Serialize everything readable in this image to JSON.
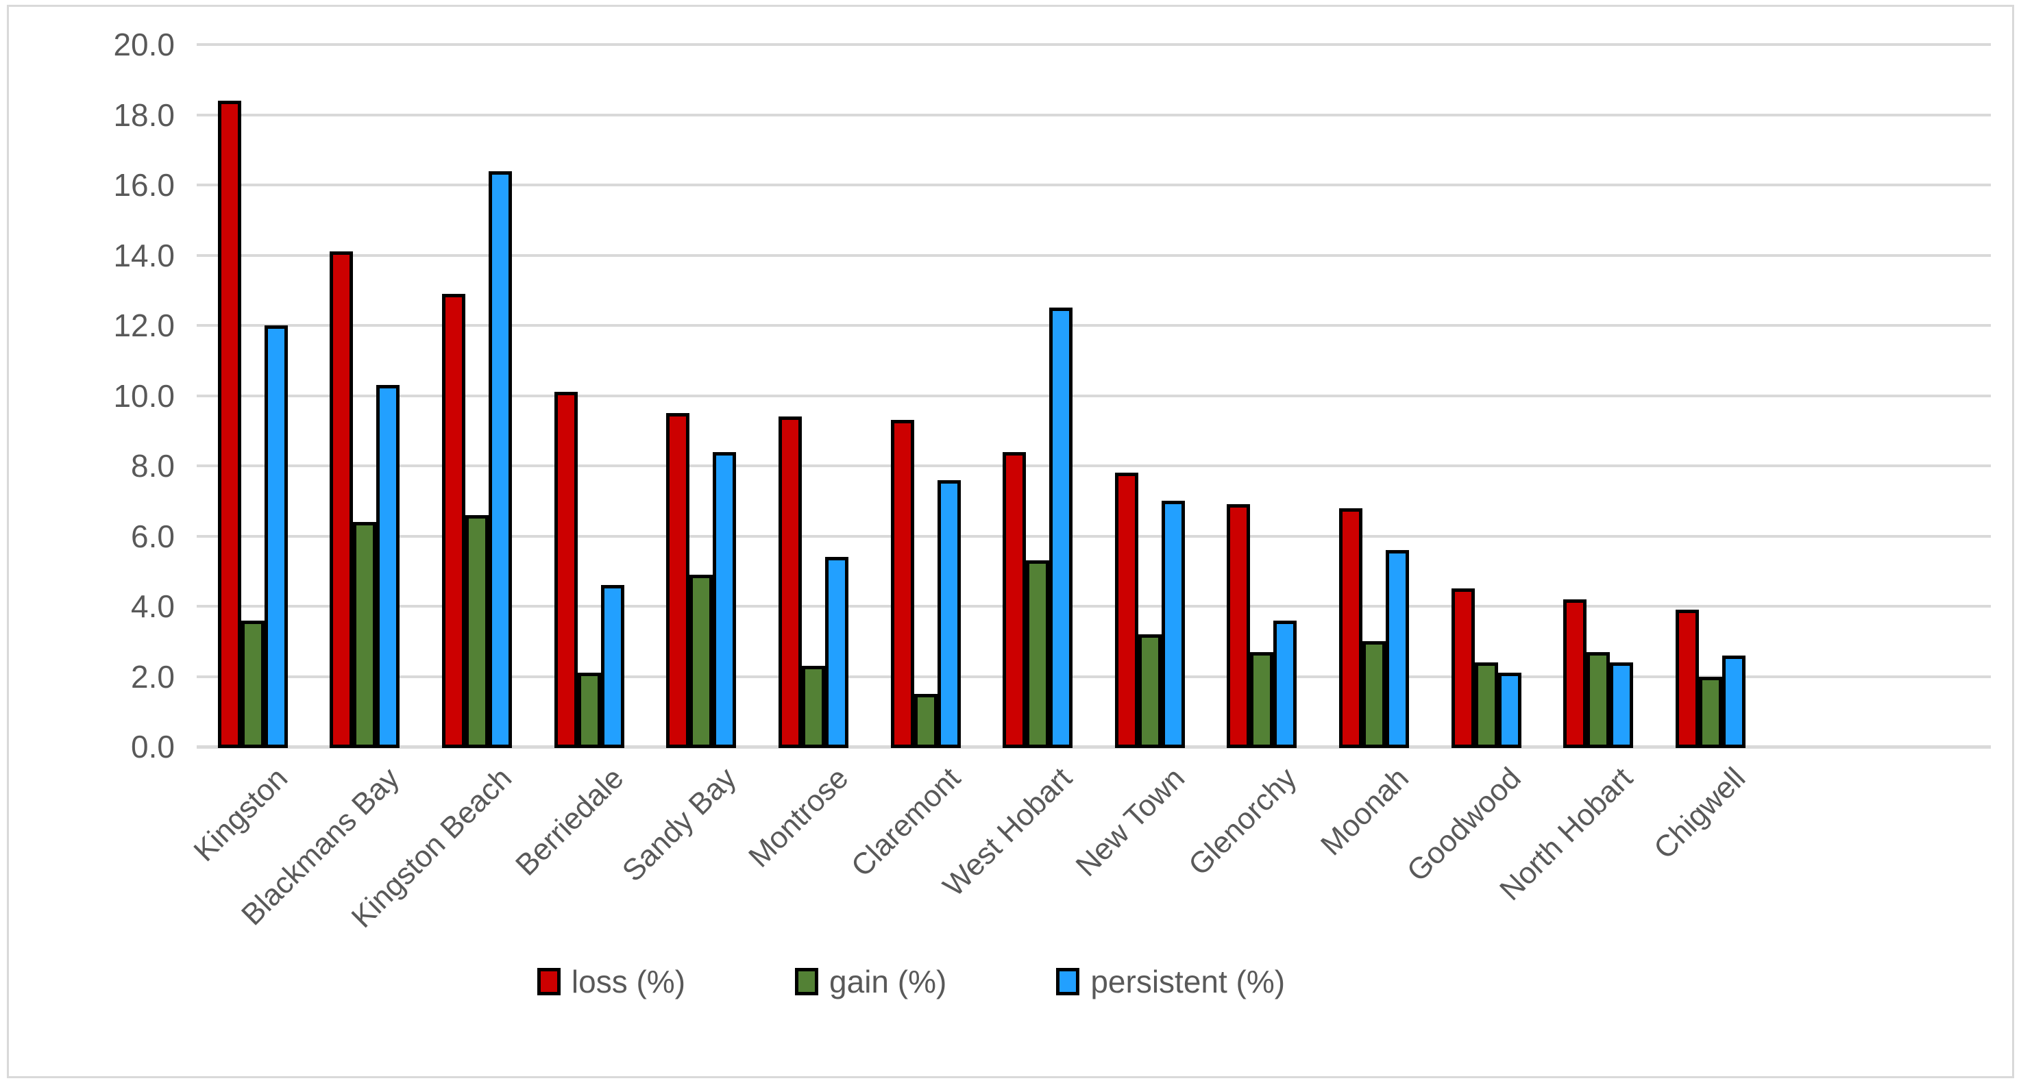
{
  "chart_data": {
    "type": "bar",
    "title": "",
    "xlabel": "",
    "ylabel": "",
    "categories": [
      "Kingston",
      "Blackmans Bay",
      "Kingston Beach",
      "Berriedale",
      "Sandy Bay",
      "Montrose",
      "Claremont",
      "West Hobart",
      "New Town",
      "Glenorchy",
      "Moonah",
      "Goodwood",
      "North Hobart",
      "Chigwell"
    ],
    "series": [
      {
        "name": "loss (%)",
        "color": "#CC0000",
        "values": [
          18.4,
          14.1,
          12.9,
          10.1,
          9.5,
          9.4,
          9.3,
          8.4,
          7.8,
          6.9,
          6.8,
          4.5,
          4.2,
          3.9
        ]
      },
      {
        "name": "gain (%)",
        "color": "#538135",
        "values": [
          3.6,
          6.4,
          6.6,
          2.1,
          4.9,
          2.3,
          1.5,
          5.3,
          3.2,
          2.7,
          3.0,
          2.4,
          2.7,
          2.0
        ]
      },
      {
        "name": "persistent (%)",
        "color": "#22A0FF",
        "values": [
          12.0,
          10.3,
          16.4,
          4.6,
          8.4,
          5.4,
          7.6,
          12.5,
          7.0,
          3.6,
          5.6,
          2.1,
          2.4,
          2.6
        ]
      }
    ],
    "ylim": [
      0,
      20
    ],
    "ytick_step": 2,
    "ytick_labels": [
      "0.0",
      "2.0",
      "4.0",
      "6.0",
      "8.0",
      "10.0",
      "12.0",
      "14.0",
      "16.0",
      "18.0",
      "20.0"
    ],
    "grid": "horizontal",
    "legend_position": "bottom",
    "bar_outline_color": "#000000",
    "gridline_color": "#D9D9D9",
    "axis_text_color": "#595959",
    "frame_color": "#D9D9D9",
    "empty_trailing_slots": 2
  }
}
